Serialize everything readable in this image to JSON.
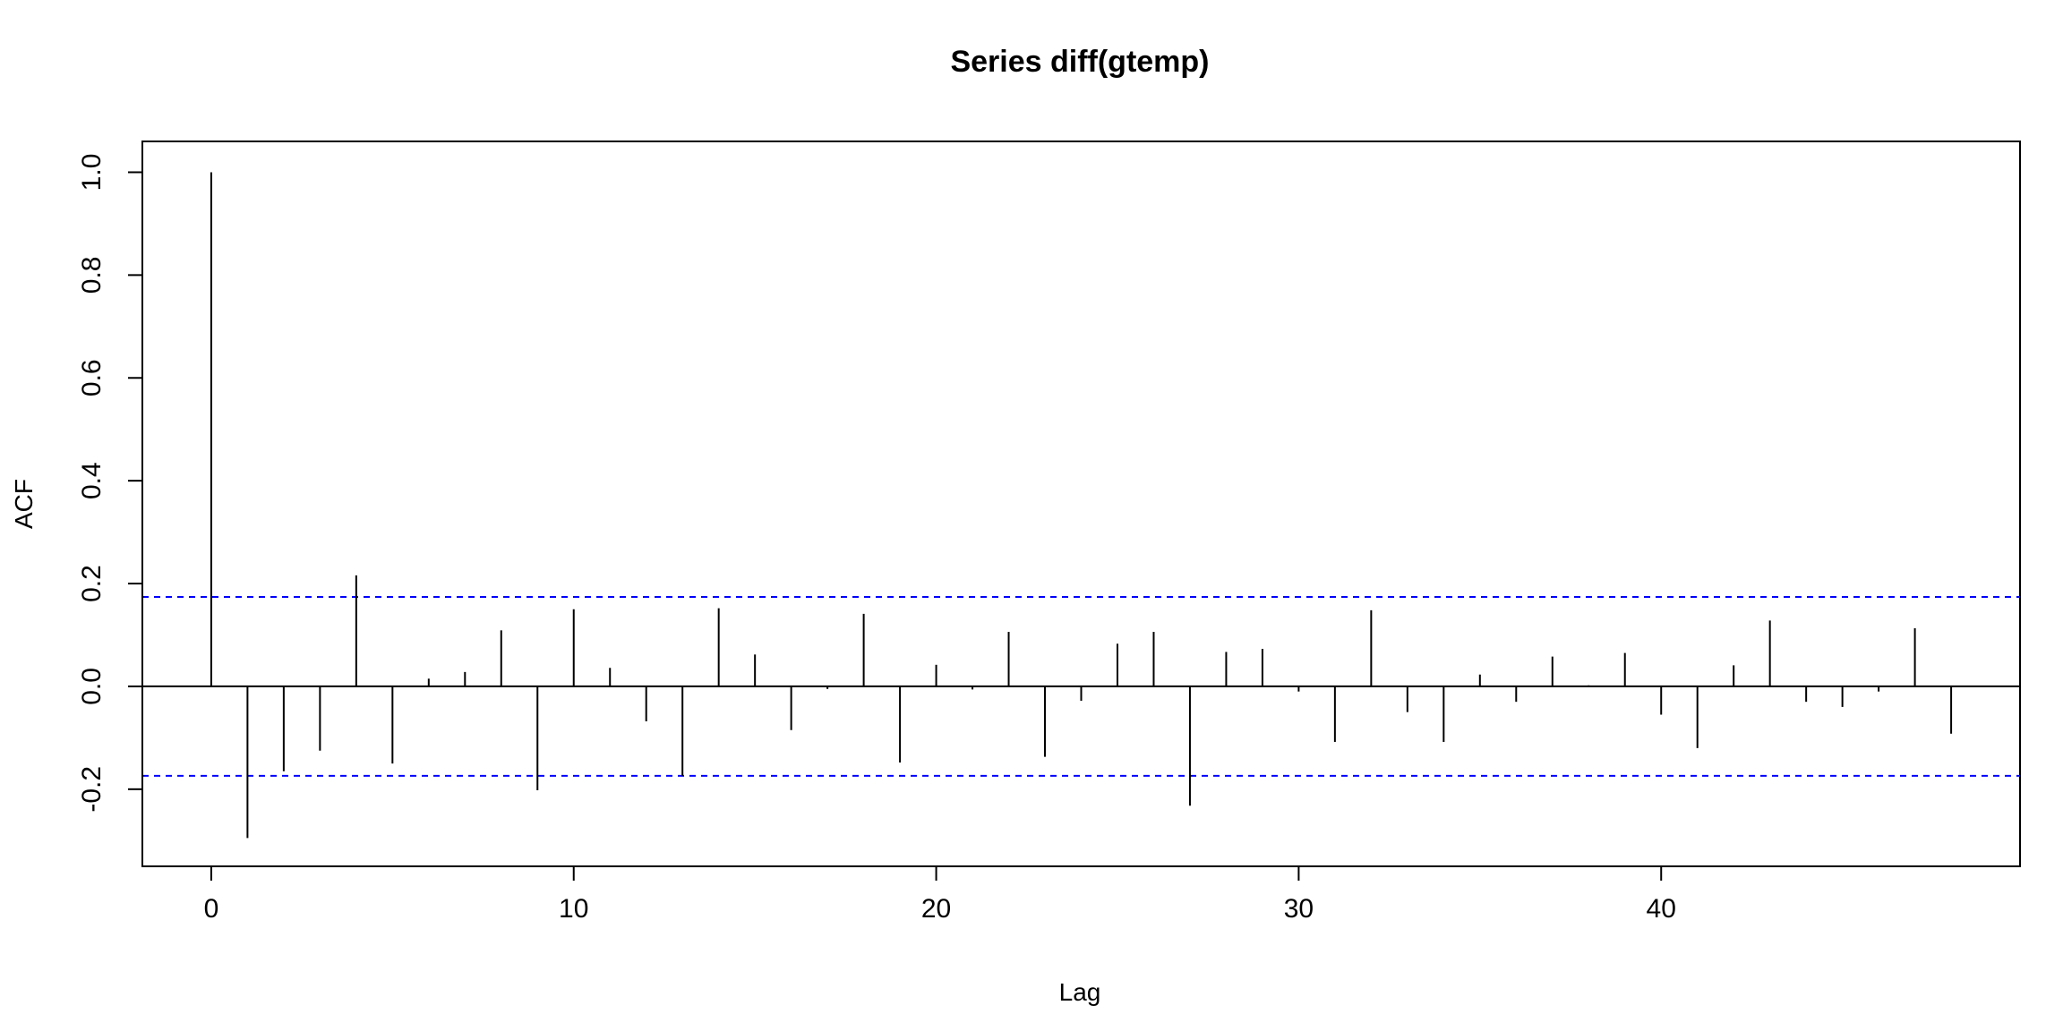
{
  "chart_data": {
    "type": "bar",
    "title": "Series  diff(gtemp)",
    "xlabel": "Lag",
    "ylabel": "ACF",
    "xlim": [
      -1.9,
      49.9
    ],
    "ylim": [
      -0.35,
      1.06
    ],
    "x_ticks": [
      0,
      10,
      20,
      30,
      40
    ],
    "y_ticks": [
      -0.2,
      0.0,
      0.2,
      0.4,
      0.6,
      0.8,
      1.0
    ],
    "y_tick_labels": [
      "-0.2",
      "0.0",
      "0.2",
      "0.4",
      "0.6",
      "0.8",
      "1.0"
    ],
    "confidence_limit": 0.174,
    "confidence_color": "#0000ff",
    "bar_color": "#000000",
    "grid": false,
    "lags": [
      0,
      1,
      2,
      3,
      4,
      5,
      6,
      7,
      8,
      9,
      10,
      11,
      12,
      13,
      14,
      15,
      16,
      17,
      18,
      19,
      20,
      21,
      22,
      23,
      24,
      25,
      26,
      27,
      28,
      29,
      30,
      31,
      32,
      33,
      34,
      35,
      36,
      37,
      38,
      39,
      40,
      41,
      42,
      43,
      44,
      45,
      46,
      47,
      48
    ],
    "acf": [
      1.0,
      -0.295,
      -0.165,
      -0.125,
      0.216,
      -0.15,
      0.015,
      0.028,
      0.109,
      -0.202,
      0.15,
      0.036,
      -0.068,
      -0.174,
      0.152,
      0.062,
      -0.085,
      -0.005,
      0.141,
      -0.148,
      0.042,
      -0.006,
      0.106,
      -0.137,
      -0.028,
      0.083,
      0.106,
      -0.232,
      0.067,
      0.073,
      -0.01,
      -0.108,
      0.148,
      -0.05,
      -0.108,
      0.023,
      -0.03,
      0.058,
      0.002,
      0.065,
      -0.055,
      -0.12,
      0.041,
      0.128,
      -0.03,
      -0.04,
      -0.01,
      0.113,
      -0.092
    ]
  }
}
